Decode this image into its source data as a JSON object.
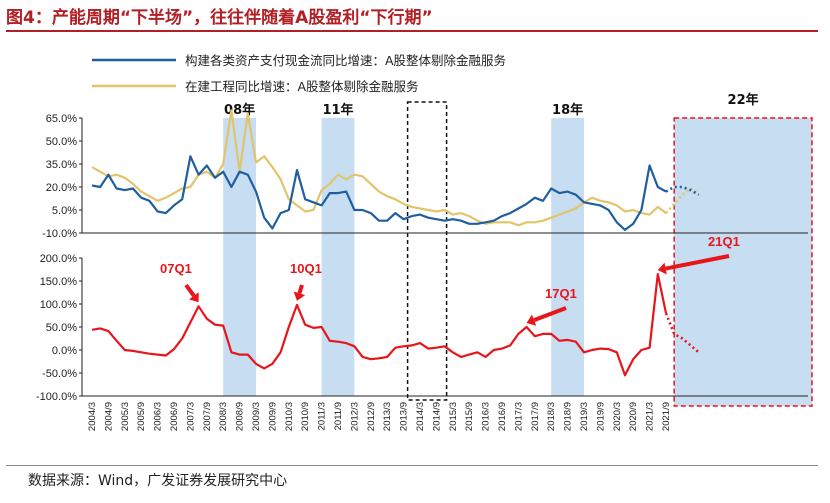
{
  "title": "图4：产能周期“下半场”，往往伴随着A股盈利“下行期”",
  "source": "数据来源：Wind，广发证券发展研究中心",
  "colors": {
    "title": "#b21f24",
    "capex_line": "#1f5f9f",
    "construction_line": "#e2c46a",
    "profit_line": "#e8151b",
    "highlight_band": "#bdd7ee",
    "forecast_box": "#e8151b"
  },
  "chart_data": [
    {
      "type": "line",
      "title": "",
      "xlabel": "",
      "ylabel": "",
      "ylim": [
        -10,
        65
      ],
      "yticks": [
        "65.0%",
        "50.0%",
        "35.0%",
        "20.0%",
        "5.0%",
        "-10.0%"
      ],
      "x": [
        "2004/3",
        "2004/6",
        "2004/9",
        "2004/12",
        "2005/3",
        "2005/6",
        "2005/9",
        "2005/12",
        "2006/3",
        "2006/6",
        "2006/9",
        "2006/12",
        "2007/3",
        "2007/6",
        "2007/9",
        "2007/12",
        "2008/3",
        "2008/6",
        "2008/9",
        "2008/12",
        "2009/3",
        "2009/6",
        "2009/9",
        "2009/12",
        "2010/3",
        "2010/6",
        "2010/9",
        "2010/12",
        "2011/3",
        "2011/6",
        "2011/9",
        "2011/12",
        "2012/3",
        "2012/6",
        "2012/9",
        "2012/12",
        "2013/3",
        "2013/6",
        "2013/9",
        "2013/12",
        "2014/3",
        "2014/6",
        "2014/9",
        "2014/12",
        "2015/3",
        "2015/6",
        "2015/9",
        "2015/12",
        "2016/3",
        "2016/6",
        "2016/9",
        "2016/12",
        "2017/3",
        "2017/6",
        "2017/9",
        "2017/12",
        "2018/3",
        "2018/6",
        "2018/9",
        "2018/12",
        "2019/3",
        "2019/6",
        "2019/9",
        "2019/12",
        "2020/3",
        "2020/6",
        "2020/9",
        "2020/12",
        "2021/3",
        "2021/6",
        "2021/9",
        "2021/12",
        "2022/3",
        "2022/6",
        "2022/9"
      ],
      "series": [
        {
          "name": "构建各类资产支付现金流同比增速：A股整体剔除金融服务",
          "values": [
            21,
            20,
            28,
            19,
            18,
            19,
            13,
            11,
            4,
            3,
            8,
            12,
            40,
            28,
            34,
            26,
            30,
            20,
            30,
            28,
            17,
            0,
            -7,
            3,
            5,
            31,
            12,
            10,
            8,
            16,
            16,
            17,
            5,
            5,
            3,
            -2,
            -2,
            3,
            -1,
            1,
            2,
            0,
            -1,
            -2,
            -1,
            -2,
            -4,
            -4,
            -3,
            -2,
            1,
            3,
            6,
            9,
            13,
            11,
            19,
            16,
            17,
            15,
            10,
            9,
            8,
            5,
            -3,
            -8,
            -4,
            5,
            34,
            20,
            17,
            null,
            null,
            null,
            null
          ],
          "forecast": [
            null,
            null,
            null,
            null,
            null,
            null,
            null,
            null,
            null,
            null,
            null,
            null,
            null,
            null,
            null,
            null,
            null,
            null,
            null,
            null,
            null,
            null,
            null,
            null,
            null,
            null,
            null,
            null,
            null,
            null,
            null,
            null,
            null,
            null,
            null,
            null,
            null,
            null,
            null,
            null,
            null,
            null,
            null,
            null,
            null,
            null,
            null,
            null,
            null,
            null,
            null,
            null,
            null,
            null,
            null,
            null,
            null,
            null,
            null,
            null,
            null,
            null,
            null,
            null,
            null,
            null,
            null,
            null,
            null,
            null,
            17,
            20,
            20,
            18,
            15
          ]
        },
        {
          "name": "在建工程同比增速：A股整体剔除金融服务",
          "values": [
            33,
            30,
            27,
            28,
            26,
            22,
            17,
            14,
            11,
            13,
            16,
            19,
            20,
            28,
            30,
            26,
            35,
            70,
            30,
            68,
            36,
            40,
            33,
            25,
            12,
            8,
            4,
            5,
            18,
            22,
            28,
            25,
            28,
            27,
            22,
            17,
            14,
            12,
            9,
            7,
            6,
            5,
            4,
            5,
            2,
            3,
            1,
            -2,
            -4,
            -3,
            -3,
            -3,
            -5,
            -3,
            -3,
            -2,
            0,
            2,
            4,
            6,
            10,
            13,
            11,
            10,
            8,
            4,
            5,
            3,
            2,
            7,
            3,
            null,
            null,
            null,
            null
          ],
          "forecast": [
            null,
            null,
            null,
            null,
            null,
            null,
            null,
            null,
            null,
            null,
            null,
            null,
            null,
            null,
            null,
            null,
            null,
            null,
            null,
            null,
            null,
            null,
            null,
            null,
            null,
            null,
            null,
            null,
            null,
            null,
            null,
            null,
            null,
            null,
            null,
            null,
            null,
            null,
            null,
            null,
            null,
            null,
            null,
            null,
            null,
            null,
            null,
            null,
            null,
            null,
            null,
            null,
            null,
            null,
            null,
            null,
            null,
            null,
            null,
            null,
            null,
            null,
            null,
            null,
            null,
            null,
            null,
            null,
            null,
            null,
            3,
            9,
            15,
            19,
            15
          ]
        }
      ]
    },
    {
      "type": "line",
      "title": "",
      "xlabel": "",
      "ylabel": "",
      "ylim": [
        -100,
        200
      ],
      "yticks": [
        "200.0%",
        "150.0%",
        "100.0%",
        "50.0%",
        "0.0%",
        "-50.0%",
        "-100.0%"
      ],
      "x": [
        "2004/3",
        "2004/6",
        "2004/9",
        "2004/12",
        "2005/3",
        "2005/6",
        "2005/9",
        "2005/12",
        "2006/3",
        "2006/6",
        "2006/9",
        "2006/12",
        "2007/3",
        "2007/6",
        "2007/9",
        "2007/12",
        "2008/3",
        "2008/6",
        "2008/9",
        "2008/12",
        "2009/3",
        "2009/6",
        "2009/9",
        "2009/12",
        "2010/3",
        "2010/6",
        "2010/9",
        "2010/12",
        "2011/3",
        "2011/6",
        "2011/9",
        "2011/12",
        "2012/3",
        "2012/6",
        "2012/9",
        "2012/12",
        "2013/3",
        "2013/6",
        "2013/9",
        "2013/12",
        "2014/3",
        "2014/6",
        "2014/9",
        "2014/12",
        "2015/3",
        "2015/6",
        "2015/9",
        "2015/12",
        "2016/3",
        "2016/6",
        "2016/9",
        "2016/12",
        "2017/3",
        "2017/6",
        "2017/9",
        "2017/12",
        "2018/3",
        "2018/6",
        "2018/9",
        "2018/12",
        "2019/3",
        "2019/6",
        "2019/9",
        "2019/12",
        "2020/3",
        "2020/6",
        "2020/9",
        "2020/12",
        "2021/3",
        "2021/6",
        "2021/9",
        "2021/12",
        "2022/3",
        "2022/6",
        "2022/9"
      ],
      "series": [
        {
          "name": "A股整体剔除金融服务归母净利润同比增速",
          "values": [
            44,
            47,
            41,
            20,
            0,
            -2,
            -5,
            -8,
            -10,
            -12,
            2,
            25,
            60,
            95,
            68,
            55,
            53,
            -5,
            -10,
            -10,
            -30,
            -40,
            -30,
            -5,
            50,
            98,
            55,
            48,
            50,
            20,
            18,
            15,
            8,
            -15,
            -20,
            -18,
            -15,
            5,
            8,
            10,
            15,
            3,
            5,
            8,
            -5,
            -15,
            -10,
            -5,
            -15,
            0,
            3,
            10,
            35,
            50,
            30,
            35,
            35,
            20,
            22,
            18,
            -5,
            0,
            3,
            2,
            -5,
            -55,
            -20,
            0,
            5,
            165,
            80,
            null,
            null,
            null,
            null
          ],
          "forecast": [
            null,
            null,
            null,
            null,
            null,
            null,
            null,
            null,
            null,
            null,
            null,
            null,
            null,
            null,
            null,
            null,
            null,
            null,
            null,
            null,
            null,
            null,
            null,
            null,
            null,
            null,
            null,
            null,
            null,
            null,
            null,
            null,
            null,
            null,
            null,
            null,
            null,
            null,
            null,
            null,
            null,
            null,
            null,
            null,
            null,
            null,
            null,
            null,
            null,
            null,
            null,
            null,
            null,
            null,
            null,
            null,
            null,
            null,
            null,
            null,
            null,
            null,
            null,
            null,
            null,
            null,
            null,
            null,
            null,
            null,
            80,
            35,
            25,
            10,
            -5
          ]
        }
      ]
    }
  ],
  "x_tick_labels": [
    "2004/3",
    "2004/9",
    "2005/3",
    "2005/9",
    "2006/3",
    "2006/9",
    "2007/3",
    "2007/9",
    "2008/3",
    "2008/9",
    "2009/3",
    "2009/9",
    "2010/3",
    "2010/9",
    "2011/3",
    "2011/9",
    "2012/3",
    "2012/9",
    "2013/3",
    "2013/9",
    "2014/3",
    "2014/9",
    "2015/3",
    "2015/9",
    "2016/3",
    "2016/9",
    "2017/3",
    "2017/9",
    "2018/3",
    "2018/9",
    "2019/3",
    "2019/9",
    "2020/3",
    "2020/9",
    "2021/3",
    "2021/9"
  ],
  "periods": [
    {
      "label": "08年",
      "start": "2008/3",
      "end": "2009/3"
    },
    {
      "label": "11年",
      "start": "2011/3",
      "end": "2012/3"
    },
    {
      "label": "18年",
      "start": "2018/3",
      "end": "2019/3"
    },
    {
      "label": "22年",
      "start": "2021/12",
      "end": "2022/9"
    }
  ],
  "annotations": [
    {
      "label": "07Q1",
      "at": "2007/6"
    },
    {
      "label": "10Q1",
      "at": "2010/6"
    },
    {
      "label": "17Q1",
      "at": "2017/6"
    },
    {
      "label": "21Q1",
      "at": "2021/6"
    }
  ]
}
